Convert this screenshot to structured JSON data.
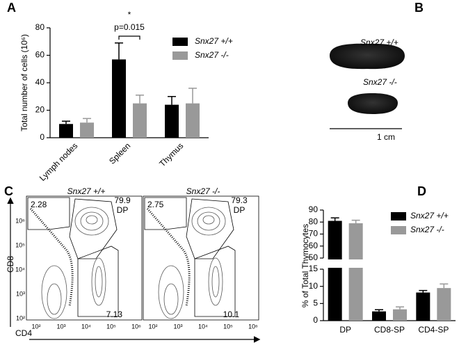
{
  "panel_labels": [
    "A",
    "B",
    "C",
    "D"
  ],
  "chart_data": [
    {
      "type": "bar",
      "ylabel": "Total number of cells (10⁶)",
      "categories": [
        "Lymph nodes",
        "Spleen",
        "Thymus"
      ],
      "series": [
        {
          "name": "Snx27 +/+",
          "color": "#000000",
          "values": [
            10,
            57,
            24
          ],
          "errors": [
            2,
            12,
            6
          ]
        },
        {
          "name": "Snx27 -/-",
          "color": "#999999",
          "values": [
            11,
            25,
            25
          ],
          "errors": [
            3,
            6,
            11
          ]
        }
      ],
      "ylim": [
        0,
        80
      ],
      "yticks": [
        0,
        20,
        40,
        60,
        80
      ],
      "annotations": [
        "p=0.015",
        "*"
      ]
    },
    {
      "type": "bar",
      "ylabel": "% of Total Thymocytes",
      "categories": [
        "DP",
        "CD8-SP",
        "CD4-SP"
      ],
      "series": [
        {
          "name": "Snx27 +/+",
          "color": "#000000",
          "values": [
            81,
            2.7,
            8.2
          ],
          "errors": [
            2.5,
            0.5,
            0.6
          ]
        },
        {
          "name": "Snx27 -/-",
          "color": "#999999",
          "values": [
            79,
            3.3,
            9.5
          ],
          "errors": [
            2.5,
            0.7,
            1.2
          ]
        }
      ],
      "ylim": [
        0,
        90
      ],
      "axis_break": [
        15,
        50
      ],
      "yticks": [
        0,
        5,
        10,
        15,
        50,
        60,
        70,
        80,
        90
      ]
    }
  ],
  "image_b": {
    "labels": [
      "Snx27 +/+",
      "Snx27 -/-"
    ],
    "scale_bar": "1 cm"
  },
  "flow_c": {
    "y_axis": "CD8",
    "x_axis": "CD4",
    "ticks": [
      "10²",
      "10³",
      "10⁴",
      "10⁵",
      "10⁶"
    ],
    "plots": [
      {
        "title": "Snx27 +/+",
        "dn": "2.28",
        "dp": "79.9",
        "dp_label": "DP",
        "cd4": "7.13"
      },
      {
        "title": "Snx27 -/-",
        "dn": "2.75",
        "dp": "79.3",
        "dp_label": "DP",
        "cd4": "10.1"
      }
    ]
  }
}
